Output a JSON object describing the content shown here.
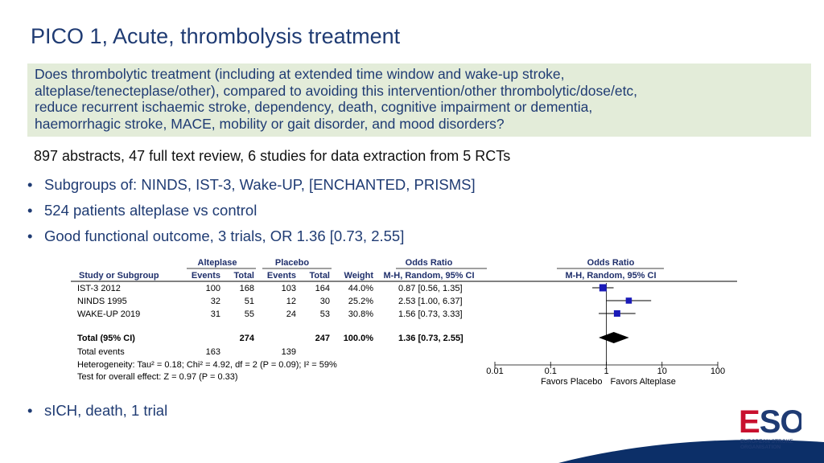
{
  "slide": {
    "title": "PICO 1, Acute, thrombolysis treatment",
    "question": "Does thrombolytic treatment (including at extended time window and wake-up stroke,\nalteplase/tenecteplase/other), compared to avoiding this intervention/other thrombolytic/dose/etc,\nreduce recurrent ischaemic stroke, dependency, death, cognitive impairment or dementia,\nhaemorrhagic stroke, MACE, mobility or gait disorder, and mood disorders?",
    "summary": "897 abstracts, 47 full text review, 6 studies for data extraction from 5 RCTs",
    "bullets": [
      "Subgroups of: NINDS, IST-3, Wake-UP, [ENCHANTED, PRISMS]",
      "524 patients alteplase vs control",
      "Good functional outcome, 3 trials, OR 1.36 [0.73, 2.55]"
    ],
    "bullet_last": "sICH, death, 1 trial",
    "bullet_char": "•"
  },
  "forest": {
    "headers": {
      "group1": "Alteplase",
      "group2": "Placebo",
      "odds_ratio": "Odds Ratio",
      "odds_ratio_plot": "Odds Ratio",
      "study": "Study or Subgroup",
      "events1": "Events",
      "total1": "Total",
      "events2": "Events",
      "total2": "Total",
      "weight": "Weight",
      "method": "M-H, Random, 95% CI",
      "method_plot": "M-H, Random, 95% CI"
    },
    "studies": [
      {
        "name": "IST-3 2012",
        "events1": "100",
        "total1": "168",
        "events2": "103",
        "total2": "164",
        "weight": "44.0%",
        "ci": "0.87 [0.56, 1.35]",
        "or": 0.87,
        "lo": 0.56,
        "hi": 1.35,
        "w": 44.0
      },
      {
        "name": "NINDS 1995",
        "events1": "32",
        "total1": "51",
        "events2": "12",
        "total2": "30",
        "weight": "25.2%",
        "ci": "2.53 [1.00, 6.37]",
        "or": 2.53,
        "lo": 1.0,
        "hi": 6.37,
        "w": 25.2
      },
      {
        "name": "WAKE-UP 2019",
        "events1": "31",
        "total1": "55",
        "events2": "24",
        "total2": "53",
        "weight": "30.8%",
        "ci": "1.56 [0.73, 3.33]",
        "or": 1.56,
        "lo": 0.73,
        "hi": 3.33,
        "w": 30.8
      }
    ],
    "total": {
      "name": "Total (95% CI)",
      "total1": "274",
      "total2": "247",
      "weight": "100.0%",
      "ci": "1.36 [0.73, 2.55]",
      "or": 1.36,
      "lo": 0.73,
      "hi": 2.55
    },
    "total_events": {
      "label": "Total events",
      "events1": "163",
      "events2": "139"
    },
    "heterogeneity": "Heterogeneity: Tau² = 0.18; Chi² = 4.92, df = 2 (P = 0.09); I² = 59%",
    "overall_test": "Test for overall effect: Z = 0.97 (P = 0.33)",
    "axis_ticks": [
      0.01,
      0.1,
      1,
      10,
      100
    ],
    "axis_tick_labels": [
      "0.01",
      "0.1",
      "1",
      "10",
      "100"
    ],
    "favors_left": "Favors Placebo",
    "favors_right": "Favors Alteplase",
    "scale": "log",
    "colors": {
      "square": "#1a1ab8",
      "diamond": "#000000",
      "header": "#1f2f6b"
    }
  },
  "logo": {
    "mark": "ESO",
    "text": "EUROPEAN STROKE\nORGANISATION",
    "colors": {
      "e": "#c8102e",
      "so": "#1f3b73"
    }
  }
}
